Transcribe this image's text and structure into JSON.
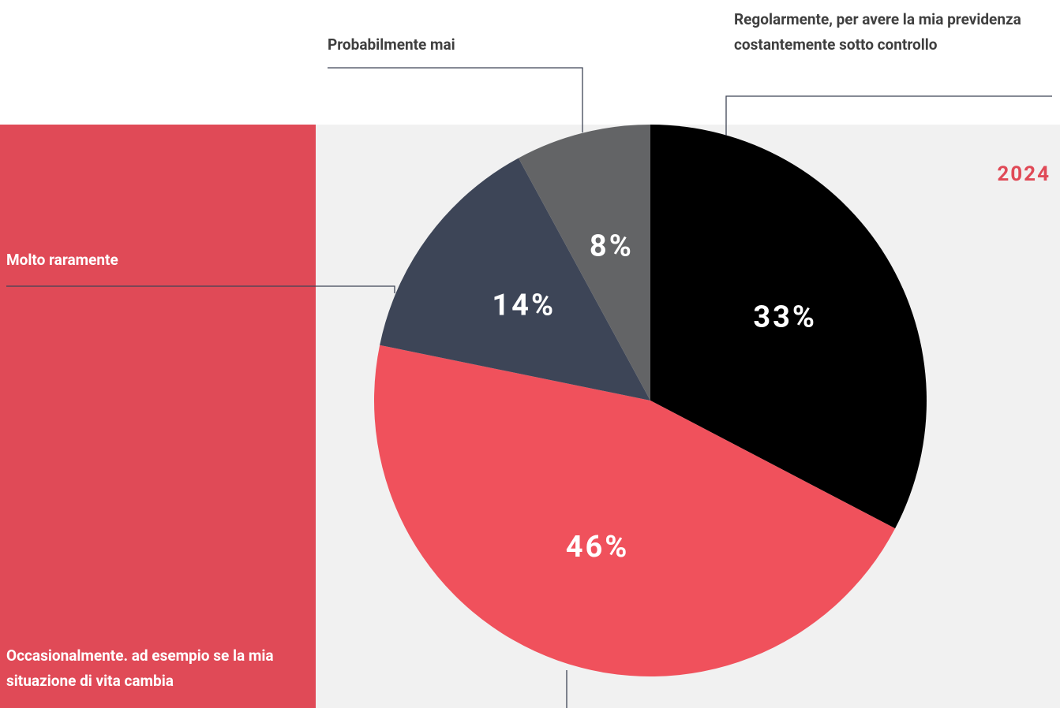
{
  "chart_data": {
    "type": "pie",
    "categories": [
      "Regolarmente, per avere la mia previdenza costantemente sotto controllo",
      "Occasionalmente. ad esempio se la mia situazione di vita cambia",
      "Molto raramente",
      "Probabilmente mai"
    ],
    "values": [
      33,
      46,
      14,
      8
    ],
    "value_labels": [
      "33%",
      "46%",
      "14%",
      "8%"
    ],
    "colors": [
      "#000000",
      "#f0515c",
      "#3d4557",
      "#636466"
    ],
    "annotations": [
      "2024"
    ]
  }
}
